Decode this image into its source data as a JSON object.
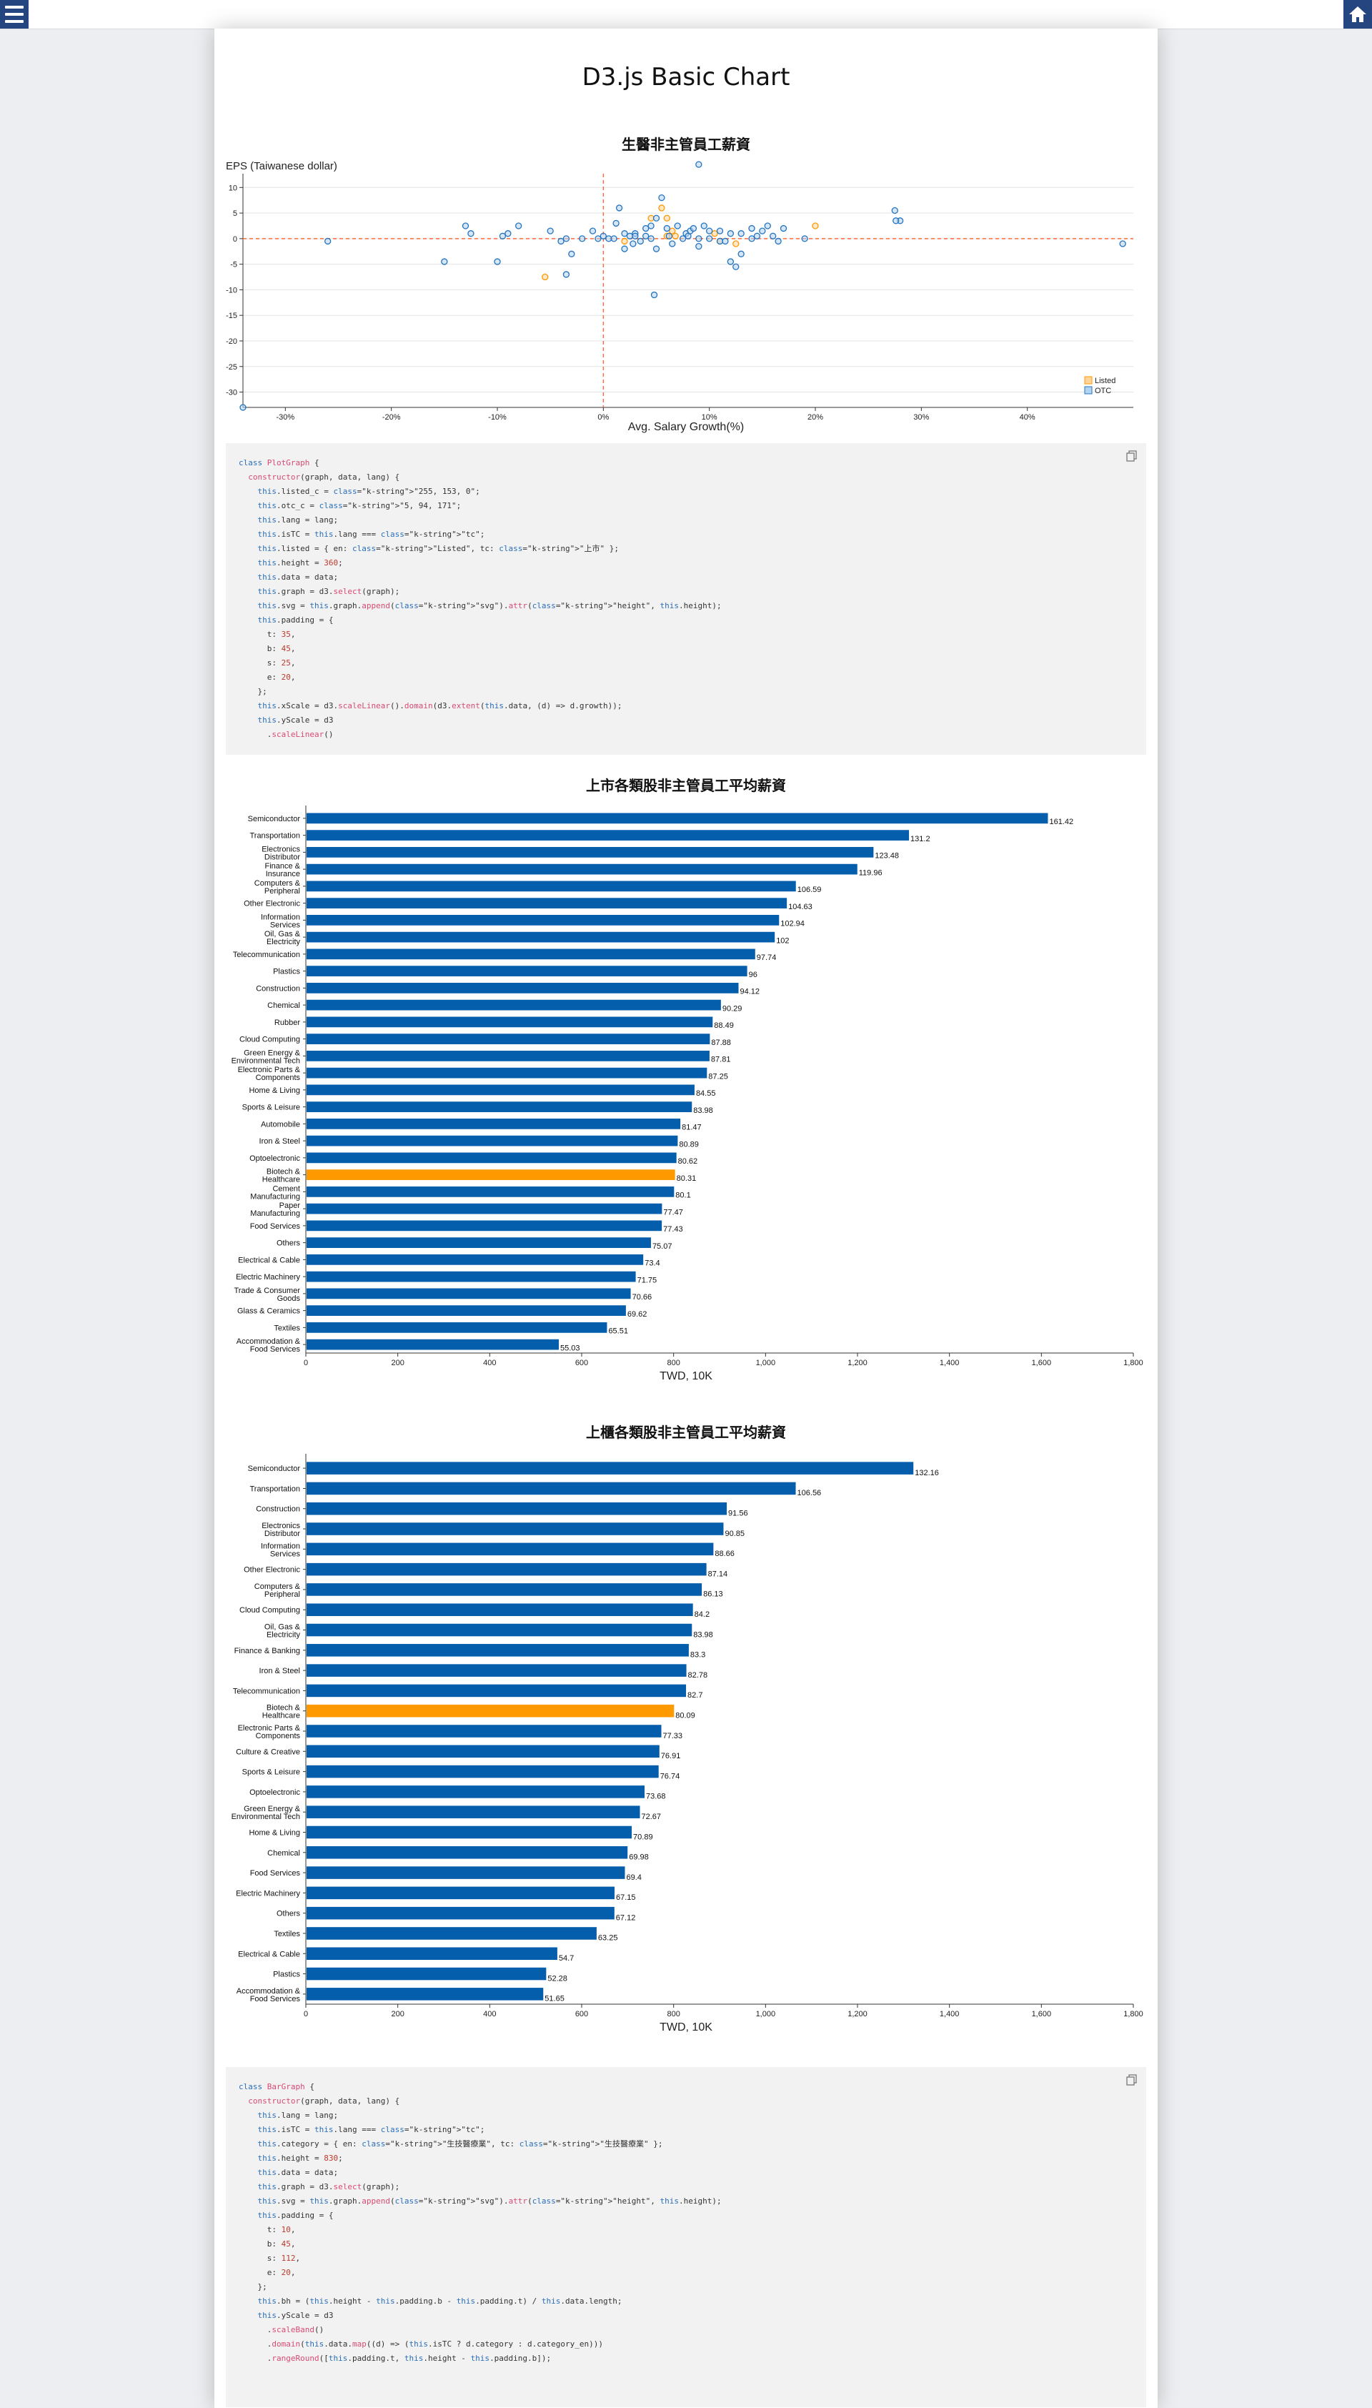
{
  "header": {
    "menu_icon": "hamburger-icon",
    "home_icon": "home-icon"
  },
  "page_title": "D3.js Basic Chart",
  "scatter": {
    "title": "生醫非主管員工薪資",
    "chart_data": {
      "type": "scatter",
      "title": "生醫非主管員工薪資",
      "xlabel": "Avg. Salary Growth(%)",
      "ylabel": "EPS (Taiwanese dollar)",
      "xlim": [
        -0.34,
        0.5
      ],
      "ylim": [
        -33,
        12
      ],
      "x_ticks": [
        "-30%",
        "-20%",
        "-10%",
        "0%",
        "10%",
        "20%",
        "30%",
        "40%"
      ],
      "y_ticks": [
        "10",
        "5",
        "0",
        "-5",
        "-10",
        "-15",
        "-20",
        "-25",
        "-30"
      ],
      "legend_position": "bottom-right",
      "colors": {
        "Listed": "#ffc880",
        "OTC": "#69a9e0",
        "zero_line": "#ff6a3d"
      },
      "series": [
        {
          "name": "Listed",
          "points": [
            [
              -0.055,
              -7.5
            ],
            [
              0.055,
              6
            ],
            [
              0.06,
              4
            ],
            [
              0.065,
              1.5
            ],
            [
              0.068,
              0.5
            ],
            [
              0.02,
              -0.5
            ],
            [
              0.105,
              1
            ],
            [
              0.11,
              -0.5
            ],
            [
              0.125,
              -1
            ],
            [
              0.2,
              2.5
            ],
            [
              0.045,
              4
            ],
            [
              0.06,
              0.5
            ]
          ]
        },
        {
          "name": "OTC",
          "points": [
            [
              -0.34,
              -33
            ],
            [
              -0.26,
              -0.5
            ],
            [
              -0.13,
              2.5
            ],
            [
              -0.125,
              1
            ],
            [
              -0.15,
              -4.5
            ],
            [
              -0.1,
              -4.5
            ],
            [
              -0.095,
              0.5
            ],
            [
              -0.09,
              1
            ],
            [
              -0.08,
              2.5
            ],
            [
              -0.05,
              1.5
            ],
            [
              -0.04,
              -0.5
            ],
            [
              -0.035,
              0
            ],
            [
              -0.035,
              -7
            ],
            [
              -0.03,
              -3
            ],
            [
              -0.02,
              0
            ],
            [
              -0.01,
              1.5
            ],
            [
              -0.005,
              0
            ],
            [
              0.0,
              0.5
            ],
            [
              0.005,
              0
            ],
            [
              0.01,
              0
            ],
            [
              0.012,
              3
            ],
            [
              0.015,
              6
            ],
            [
              0.02,
              1
            ],
            [
              0.02,
              -2
            ],
            [
              0.025,
              0.5
            ],
            [
              0.03,
              1
            ],
            [
              0.035,
              -0.5
            ],
            [
              0.04,
              0.5
            ],
            [
              0.04,
              2
            ],
            [
              0.045,
              2.5
            ],
            [
              0.045,
              0
            ],
            [
              0.048,
              -11
            ],
            [
              0.05,
              -2
            ],
            [
              0.05,
              4
            ],
            [
              0.055,
              8
            ],
            [
              0.06,
              2
            ],
            [
              0.062,
              0.5
            ],
            [
              0.065,
              -1
            ],
            [
              0.07,
              2.5
            ],
            [
              0.075,
              0
            ],
            [
              0.078,
              1
            ],
            [
              0.08,
              0.5
            ],
            [
              0.082,
              1.5
            ],
            [
              0.085,
              2
            ],
            [
              0.09,
              0
            ],
            [
              0.09,
              -1.5
            ],
            [
              0.095,
              2.5
            ],
            [
              0.1,
              1.5
            ],
            [
              0.1,
              0
            ],
            [
              0.09,
              14.5
            ],
            [
              0.11,
              1.5
            ],
            [
              0.11,
              -0.5
            ],
            [
              0.115,
              -0.5
            ],
            [
              0.12,
              1
            ],
            [
              0.12,
              -4.5
            ],
            [
              0.125,
              -5.5
            ],
            [
              0.13,
              1
            ],
            [
              0.13,
              -3
            ],
            [
              0.14,
              0
            ],
            [
              0.14,
              2
            ],
            [
              0.145,
              0.5
            ],
            [
              0.15,
              1.5
            ],
            [
              0.155,
              2.5
            ],
            [
              0.16,
              0.5
            ],
            [
              0.165,
              -0.5
            ],
            [
              0.17,
              2
            ],
            [
              0.19,
              0
            ],
            [
              0.275,
              5.5
            ],
            [
              0.28,
              3.5
            ],
            [
              0.276,
              3.5
            ],
            [
              0.49,
              -1
            ],
            [
              0.03,
              0.5
            ],
            [
              0.028,
              -1
            ]
          ]
        }
      ]
    }
  },
  "code1": {
    "copy_icon": "copy-icon",
    "lines": [
      "class PlotGraph {",
      "  constructor(graph, data, lang) {",
      "    this.listed_c = \"255, 153, 0\";",
      "    this.otc_c = \"5, 94, 171\";",
      "    this.lang = lang;",
      "    this.isTC = this.lang === \"tc\";",
      "    this.listed = { en: \"Listed\", tc: \"上市\" };",
      "    this.height = 360;",
      "    this.data = data;",
      "    this.graph = d3.select(graph);",
      "    this.svg = this.graph.append(\"svg\").attr(\"height\", this.height);",
      "    this.padding = {",
      "      t: 35,",
      "      b: 45,",
      "      s: 25,",
      "      e: 20,",
      "    };",
      "    this.xScale = d3.scaleLinear().domain(d3.extent(this.data, (d) => d.growth));",
      "    this.yScale = d3",
      "      .scaleLinear()"
    ]
  },
  "bar_listed": {
    "title": "上市各類股非主管員工平均薪資",
    "chart_data": {
      "type": "bar",
      "orientation": "horizontal",
      "title": "上市各類股非主管員工平均薪資",
      "xlabel": "TWD, 10K",
      "xlim": [
        0,
        1800
      ],
      "x_ticks": [
        "0",
        "200",
        "400",
        "600",
        "800",
        "1,000",
        "1,200",
        "1,400",
        "1,600",
        "1,800"
      ],
      "bar_color": "#055eab",
      "highlight_color": "#ff9900",
      "highlight_category": "Biotech & Healthcare",
      "categories": [
        [
          "Semiconductor"
        ],
        [
          "Transportation"
        ],
        [
          "Electronics",
          "Distributor"
        ],
        [
          "Finance &",
          "Insurance"
        ],
        [
          "Computers &",
          "Peripheral"
        ],
        [
          "Other Electronic"
        ],
        [
          "Information",
          "Services"
        ],
        [
          "Oil, Gas &",
          "Electricity"
        ],
        [
          "Telecommunication"
        ],
        [
          "Plastics"
        ],
        [
          "Construction"
        ],
        [
          "Chemical"
        ],
        [
          "Rubber"
        ],
        [
          "Cloud Computing"
        ],
        [
          "Green Energy &",
          "Environmental Tech"
        ],
        [
          "Electronic Parts &",
          "Components"
        ],
        [
          "Home & Living"
        ],
        [
          "Sports & Leisure"
        ],
        [
          "Automobile"
        ],
        [
          "Iron & Steel"
        ],
        [
          "Optoelectronic"
        ],
        [
          "Biotech &",
          "Healthcare"
        ],
        [
          "Cement",
          "Manufacturing"
        ],
        [
          "Paper",
          "Manufacturing"
        ],
        [
          "Food Services"
        ],
        [
          "Others"
        ],
        [
          "Electrical & Cable"
        ],
        [
          "Electric Machinery"
        ],
        [
          "Trade & Consumer",
          "Goods"
        ],
        [
          "Glass & Ceramics"
        ],
        [
          "Textiles"
        ],
        [
          "Accommodation &",
          "Food Services"
        ]
      ],
      "values": [
        161.42,
        131.2,
        123.48,
        119.96,
        106.59,
        104.63,
        102.94,
        102,
        97.74,
        96,
        94.12,
        90.29,
        88.49,
        87.88,
        87.81,
        87.25,
        84.55,
        83.98,
        81.47,
        80.89,
        80.62,
        80.31,
        80.1,
        77.47,
        77.43,
        75.07,
        73.4,
        71.75,
        70.66,
        69.62,
        65.51,
        55.03
      ],
      "value_labels": [
        "161.42",
        "131.2",
        "123.48",
        "119.96",
        "106.59",
        "104.63",
        "102.94",
        "102",
        "97.74",
        "96",
        "94.12",
        "90.29",
        "88.49",
        "87.88",
        "87.81",
        "87.25",
        "84.55",
        "83.98",
        "81.47",
        "80.89",
        "80.62",
        "80.31",
        "80.1",
        "77.47",
        "77.43",
        "75.07",
        "73.4",
        "71.75",
        "70.66",
        "69.62",
        "65.51",
        "55.03"
      ]
    }
  },
  "bar_otc": {
    "title": "上櫃各類股非主管員工平均薪資",
    "chart_data": {
      "type": "bar",
      "orientation": "horizontal",
      "title": "上櫃各類股非主管員工平均薪資",
      "xlabel": "TWD, 10K",
      "xlim": [
        0,
        1800
      ],
      "x_ticks": [
        "0",
        "200",
        "400",
        "600",
        "800",
        "1,000",
        "1,200",
        "1,400",
        "1,600",
        "1,800"
      ],
      "bar_color": "#055eab",
      "highlight_color": "#ff9900",
      "highlight_category": "Biotech & Healthcare",
      "categories": [
        [
          "Semiconductor"
        ],
        [
          "Transportation"
        ],
        [
          "Construction"
        ],
        [
          "Electronics",
          "Distributor"
        ],
        [
          "Information",
          "Services"
        ],
        [
          "Other Electronic"
        ],
        [
          "Computers &",
          "Peripheral"
        ],
        [
          "Cloud Computing"
        ],
        [
          "Oil, Gas &",
          "Electricity"
        ],
        [
          "Finance & Banking"
        ],
        [
          "Iron & Steel"
        ],
        [
          "Telecommunication"
        ],
        [
          "Biotech &",
          "Healthcare"
        ],
        [
          "Electronic Parts &",
          "Components"
        ],
        [
          "Culture & Creative"
        ],
        [
          "Sports & Leisure"
        ],
        [
          "Optoelectronic"
        ],
        [
          "Green Energy &",
          "Environmental Tech"
        ],
        [
          "Home & Living"
        ],
        [
          "Chemical"
        ],
        [
          "Food Services"
        ],
        [
          "Electric Machinery"
        ],
        [
          "Others"
        ],
        [
          "Textiles"
        ],
        [
          "Electrical & Cable"
        ],
        [
          "Plastics"
        ],
        [
          "Accommodation &",
          "Food Services"
        ]
      ],
      "values": [
        132.16,
        106.56,
        91.56,
        90.85,
        88.66,
        87.14,
        86.13,
        84.2,
        83.98,
        83.3,
        82.78,
        82.7,
        80.09,
        77.33,
        76.91,
        76.74,
        73.68,
        72.67,
        70.89,
        69.98,
        69.4,
        67.15,
        67.12,
        63.25,
        54.7,
        52.28,
        51.65
      ],
      "value_labels": [
        "132.16",
        "106.56",
        "91.56",
        "90.85",
        "88.66",
        "87.14",
        "86.13",
        "84.2",
        "83.98",
        "83.3",
        "82.78",
        "82.7",
        "80.09",
        "77.33",
        "76.91",
        "76.74",
        "73.68",
        "72.67",
        "70.89",
        "69.98",
        "69.4",
        "67.15",
        "67.12",
        "63.25",
        "54.7",
        "52.28",
        "51.65"
      ]
    }
  },
  "code2": {
    "copy_icon": "copy-icon",
    "lines": [
      "class BarGraph {",
      "  constructor(graph, data, lang) {",
      "    this.lang = lang;",
      "    this.isTC = this.lang === \"tc\";",
      "    this.category = { en: \"生技醫療業\", tc: \"生技醫療業\" };",
      "    this.height = 830;",
      "    this.data = data;",
      "    this.graph = d3.select(graph);",
      "    this.svg = this.graph.append(\"svg\").attr(\"height\", this.height);",
      "    this.padding = {",
      "      t: 10,",
      "      b: 45,",
      "      s: 112,",
      "      e: 20,",
      "    };",
      "    this.bh = (this.height - this.padding.b - this.padding.t) / this.data.length;",
      "    this.yScale = d3",
      "      .scaleBand()",
      "      .domain(this.data.map((d) => (this.isTC ? d.category : d.category_en)))",
      "      .rangeRound([this.padding.t, this.height - this.padding.b]);"
    ]
  }
}
